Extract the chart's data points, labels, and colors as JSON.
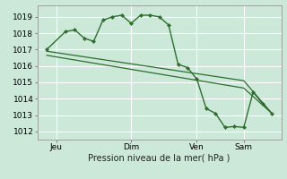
{
  "background_color": "#cce8d8",
  "plot_bg_color": "#cce8d8",
  "grid_color": "#ffffff",
  "line_color": "#2d6e2d",
  "marker_color": "#2d6e2d",
  "vline_color": "#cc9999",
  "xlabel": "Pression niveau de la mer( hPa )",
  "ylim": [
    1011.5,
    1019.7
  ],
  "yticks": [
    1012,
    1013,
    1014,
    1015,
    1016,
    1017,
    1018,
    1019
  ],
  "xtick_labels": [
    "Jeu",
    "Dim",
    "Ven",
    "Sam"
  ],
  "xtick_positions": [
    2,
    10,
    17,
    22
  ],
  "xlim": [
    0,
    26
  ],
  "series1_x": [
    1,
    3,
    4,
    5,
    6,
    7,
    8,
    9,
    10,
    11,
    12,
    13,
    14,
    15,
    16,
    17,
    18,
    19,
    20,
    21,
    22,
    23,
    24,
    25
  ],
  "series1_y": [
    1017.0,
    1018.1,
    1018.2,
    1017.7,
    1017.5,
    1018.8,
    1019.0,
    1019.1,
    1018.6,
    1019.1,
    1019.1,
    1019.0,
    1018.5,
    1016.1,
    1015.9,
    1015.2,
    1013.4,
    1013.1,
    1012.25,
    1012.3,
    1012.25,
    1014.4,
    1013.7,
    1013.1
  ],
  "series2_x": [
    1,
    22,
    25
  ],
  "series2_y": [
    1016.65,
    1014.65,
    1013.1
  ],
  "series3_x": [
    1,
    22,
    25
  ],
  "series3_y": [
    1016.9,
    1015.1,
    1013.1
  ],
  "figsize": [
    3.2,
    2.0
  ],
  "dpi": 100
}
